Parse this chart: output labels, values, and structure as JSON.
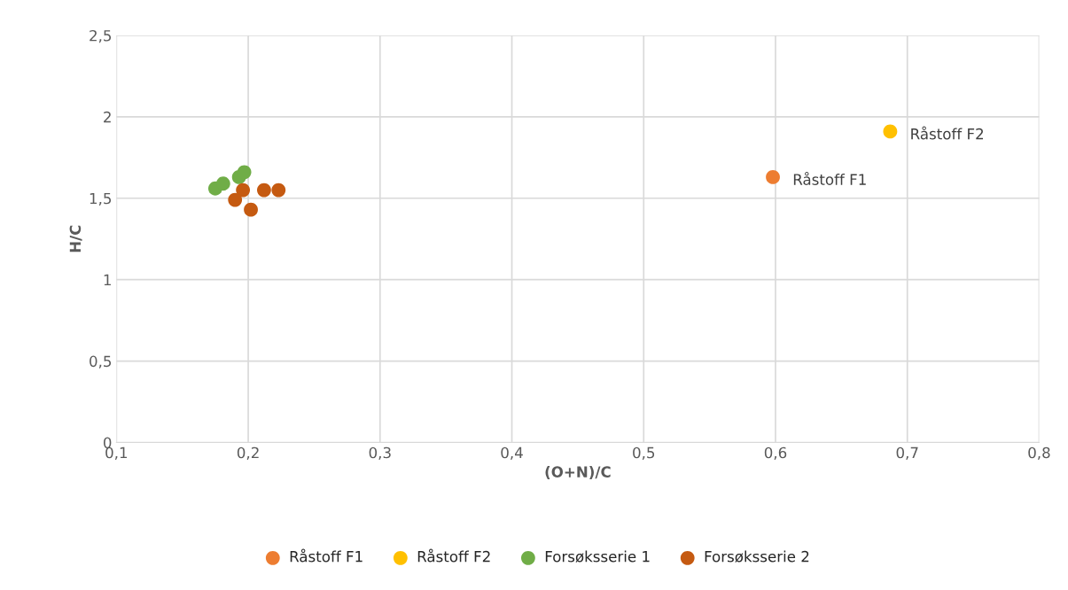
{
  "chart_data": {
    "type": "scatter",
    "xlabel": "(O+N)/C",
    "ylabel": "H/C",
    "xlim": [
      0.1,
      0.8
    ],
    "xticks": [
      {
        "value": 0.1,
        "label": "0,1"
      },
      {
        "value": 0.2,
        "label": "0,2"
      },
      {
        "value": 0.3,
        "label": "0,3"
      },
      {
        "value": 0.4,
        "label": "0,4"
      },
      {
        "value": 0.5,
        "label": "0,5"
      },
      {
        "value": 0.6,
        "label": "0,6"
      },
      {
        "value": 0.7,
        "label": "0,7"
      },
      {
        "value": 0.8,
        "label": "0,8"
      }
    ],
    "ylim": [
      0,
      2.5
    ],
    "yticks": [
      0,
      {
        "value": 0.5,
        "label": "0,5"
      },
      1,
      {
        "value": 1.5,
        "label": "1,5"
      },
      2,
      {
        "value": 2.5,
        "label": "2,5"
      }
    ],
    "grid": true,
    "legend": "bottom",
    "marker": "circle",
    "series": [
      {
        "name": "Råstoff F1",
        "color": "#ed7d31",
        "x": [
          0.598
        ],
        "values": [
          1.63
        ]
      },
      {
        "name": "Råstoff F2",
        "color": "#ffc000",
        "x": [
          0.687
        ],
        "values": [
          1.91
        ]
      },
      {
        "name": "Forsøksserie 1",
        "color": "#70ad47",
        "x": [
          0.175,
          0.181,
          0.193,
          0.197
        ],
        "values": [
          1.56,
          1.59,
          1.63,
          1.66
        ]
      },
      {
        "name": "Forsøksserie 2",
        "color": "#c55a11",
        "x": [
          0.196,
          0.19,
          0.202,
          0.212,
          0.223
        ],
        "values": [
          1.55,
          1.49,
          1.43,
          1.55,
          1.55
        ]
      }
    ],
    "annotations": [
      {
        "text": "Råstoff F1",
        "x": 0.598,
        "y": 1.63
      },
      {
        "text": "Råstoff F2",
        "x": 0.687,
        "y": 1.91
      }
    ]
  }
}
